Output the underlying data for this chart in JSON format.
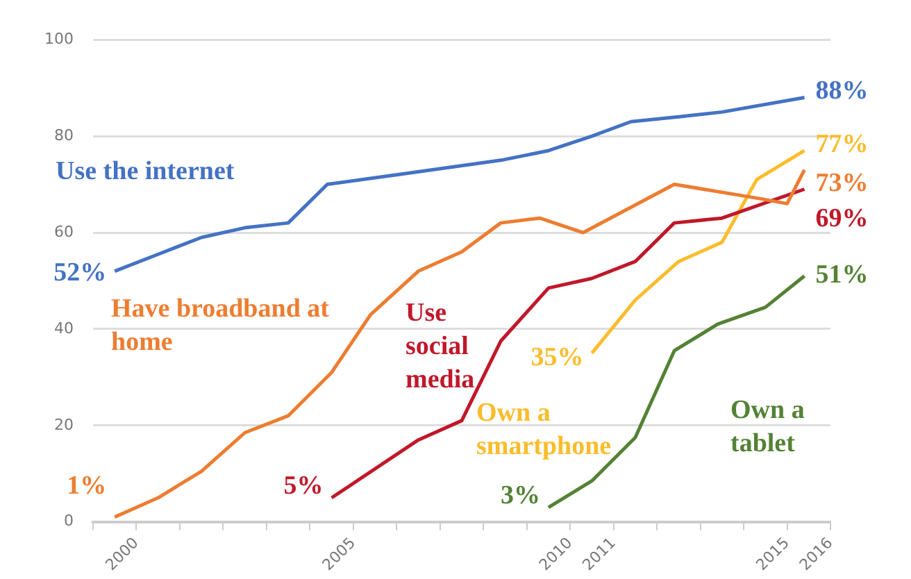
{
  "chart_data": {
    "type": "line",
    "xlim": [
      1999,
      2016
    ],
    "xticks": [
      {
        "value": 1999,
        "label": null
      },
      2000,
      {
        "value": 2001,
        "label": null
      },
      {
        "value": 2002,
        "label": null
      },
      {
        "value": 2003,
        "label": null
      },
      {
        "value": 2004,
        "label": null
      },
      2005,
      {
        "value": 2006,
        "label": null
      },
      {
        "value": 2007,
        "label": null
      },
      {
        "value": 2008,
        "label": null
      },
      {
        "value": 2009,
        "label": null
      },
      2010,
      2011,
      {
        "value": 2012,
        "label": null
      },
      {
        "value": 2013,
        "label": null
      },
      {
        "value": 2014,
        "label": null
      },
      2015,
      2016
    ],
    "ylim": [
      0,
      100
    ],
    "yticks": [
      0,
      20,
      40,
      60,
      80,
      100
    ],
    "grid": "y",
    "series": [
      {
        "name": "Use the internet",
        "color": "#4472c4",
        "x": [
          1999.5,
          2000.5,
          2001.5,
          2002.5,
          2003.5,
          2004.4,
          2006,
          2008.4,
          2009.5,
          2010.5,
          2011.4,
          2012.5,
          2013.5,
          2015.4
        ],
        "values": [
          52,
          55.5,
          59,
          61,
          62,
          70,
          72,
          75,
          77,
          80,
          83,
          84,
          85,
          88
        ],
        "value_labels": [
          "52%",
          null,
          null,
          null,
          null,
          null,
          null,
          null,
          null,
          null,
          null,
          null,
          null,
          "88%"
        ]
      },
      {
        "name": "Have broadband at home",
        "color": "#ed7d31",
        "x": [
          1999.5,
          2000.5,
          2001.5,
          2002.5,
          2003.5,
          2004.5,
          2005.4,
          2006.5,
          2007.5,
          2008.4,
          2009.3,
          2010.3,
          2012.4,
          2014.4,
          2015,
          2015.4
        ],
        "values": [
          1,
          5,
          10.5,
          18.5,
          22,
          31,
          43,
          52,
          56,
          62,
          63,
          60,
          70,
          67,
          66,
          73
        ],
        "value_labels": [
          "1%",
          null,
          null,
          null,
          null,
          null,
          null,
          null,
          null,
          null,
          null,
          null,
          null,
          null,
          null,
          "73%"
        ]
      },
      {
        "name": "Use social media",
        "color": "#c0182a",
        "x": [
          2004.5,
          2006.5,
          2007.5,
          2008.4,
          2009.5,
          2010.5,
          2011.5,
          2012.4,
          2013.5,
          2015.4
        ],
        "values": [
          5,
          17,
          21,
          37.5,
          48.5,
          50.5,
          54,
          62,
          63,
          69
        ],
        "value_labels": [
          "5%",
          null,
          null,
          null,
          null,
          null,
          null,
          null,
          null,
          "69%"
        ]
      },
      {
        "name": "Own a smartphone",
        "color": "#fbbc2c",
        "x": [
          2010.5,
          2011.5,
          2012.5,
          2013.5,
          2014.3,
          2015.4
        ],
        "values": [
          35,
          46,
          54,
          58,
          71,
          77
        ],
        "value_labels": [
          "35%",
          null,
          null,
          null,
          null,
          "77%"
        ]
      },
      {
        "name": "Own a tablet",
        "color": "#548235",
        "x": [
          2009.5,
          2010.5,
          2011.5,
          2012.4,
          2013.4,
          2014.5,
          2015.4
        ],
        "values": [
          3,
          8.5,
          17.5,
          35.5,
          41,
          44.5,
          51
        ],
        "value_labels": [
          "3%",
          null,
          null,
          null,
          null,
          null,
          "51%"
        ]
      }
    ]
  }
}
